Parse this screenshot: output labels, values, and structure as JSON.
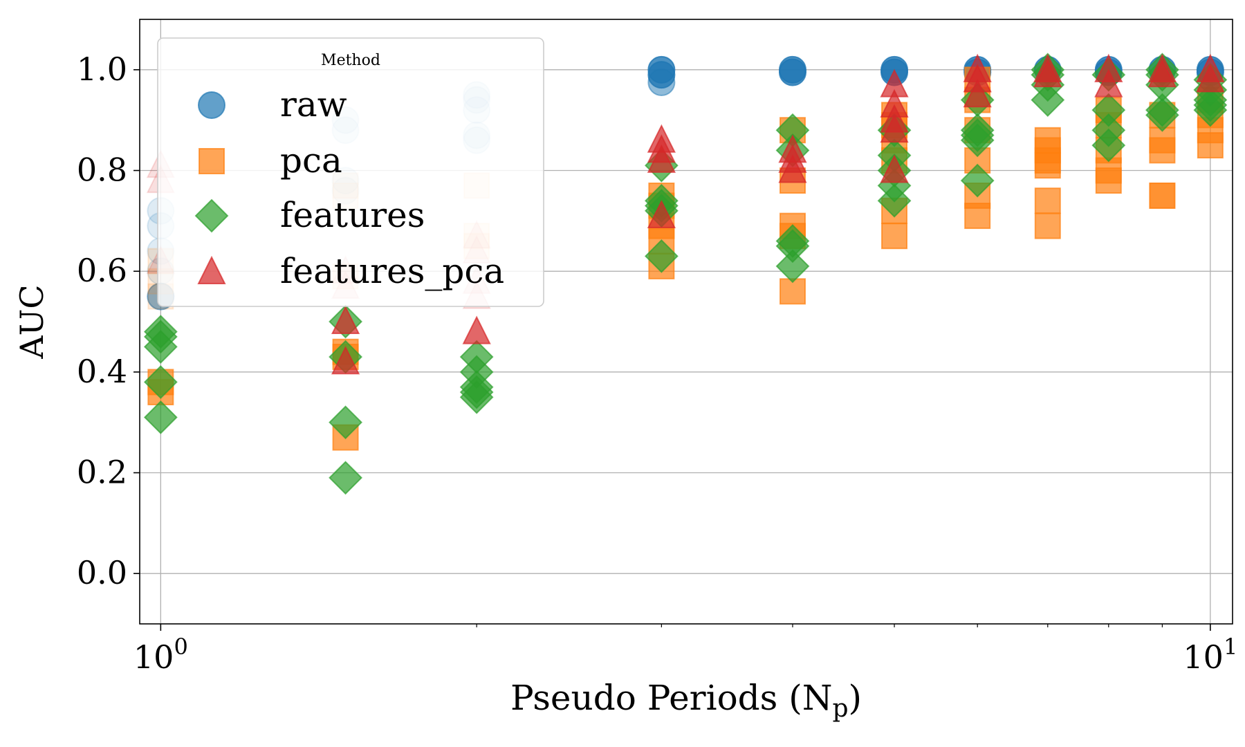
{
  "chart_data": {
    "type": "scatter",
    "title": "",
    "xlabel": "Pseudo Periods (N",
    "xlabel_sub": "p",
    "xlabel_close": ")",
    "ylabel": "AUC",
    "xscale": "log",
    "xlim": [
      0.955,
      10.5
    ],
    "ylim": [
      -0.1,
      1.1
    ],
    "x_ticks": [
      {
        "x": 1,
        "base": "10",
        "exp": "0"
      },
      {
        "x": 10,
        "base": "10",
        "exp": "1"
      }
    ],
    "y_ticks": [
      {
        "y": 0.0,
        "label": "0.0"
      },
      {
        "y": 0.2,
        "label": "0.2"
      },
      {
        "y": 0.4,
        "label": "0.4"
      },
      {
        "y": 0.6,
        "label": "0.6"
      },
      {
        "y": 0.8,
        "label": "0.8"
      },
      {
        "y": 1.0,
        "label": "1.0"
      }
    ],
    "grid": true,
    "legend": {
      "title": "Method",
      "placement": "upper-left"
    },
    "series": [
      {
        "name": "raw",
        "marker": "circle",
        "color": "#1f77b4",
        "points": [
          {
            "x": 1.0,
            "y": 0.72,
            "alpha": 0.15
          },
          {
            "x": 1.0,
            "y": 0.69,
            "alpha": 0.15
          },
          {
            "x": 1.0,
            "y": 0.64,
            "alpha": 0.15
          },
          {
            "x": 1.0,
            "y": 0.6,
            "alpha": 0.15
          },
          {
            "x": 1.0,
            "y": 0.55,
            "alpha": 0.6
          },
          {
            "x": 1.5,
            "y": 0.9,
            "alpha": 0.15
          },
          {
            "x": 1.5,
            "y": 0.88,
            "alpha": 0.15
          },
          {
            "x": 1.5,
            "y": 0.78,
            "alpha": 0.15
          },
          {
            "x": 1.5,
            "y": 0.76,
            "alpha": 0.15
          },
          {
            "x": 2.0,
            "y": 0.95,
            "alpha": 0.15
          },
          {
            "x": 2.0,
            "y": 0.94,
            "alpha": 0.15
          },
          {
            "x": 2.0,
            "y": 0.92,
            "alpha": 0.15
          },
          {
            "x": 2.0,
            "y": 0.87,
            "alpha": 0.15
          },
          {
            "x": 2.0,
            "y": 0.86,
            "alpha": 0.15
          },
          {
            "x": 3.0,
            "y": 1.0,
            "alpha": 0.8
          },
          {
            "x": 3.0,
            "y": 0.99,
            "alpha": 0.8
          },
          {
            "x": 3.0,
            "y": 0.975,
            "alpha": 0.5
          },
          {
            "x": 4.0,
            "y": 1.0,
            "alpha": 0.8
          },
          {
            "x": 4.0,
            "y": 0.995,
            "alpha": 0.8
          },
          {
            "x": 5.0,
            "y": 1.0,
            "alpha": 0.8
          },
          {
            "x": 5.0,
            "y": 0.995,
            "alpha": 0.8
          },
          {
            "x": 6.0,
            "y": 1.0,
            "alpha": 0.8
          },
          {
            "x": 6.0,
            "y": 0.995,
            "alpha": 0.8
          },
          {
            "x": 7.0,
            "y": 1.0,
            "alpha": 0.8
          },
          {
            "x": 8.0,
            "y": 1.0,
            "alpha": 0.8
          },
          {
            "x": 8.0,
            "y": 0.995,
            "alpha": 0.8
          },
          {
            "x": 9.0,
            "y": 1.0,
            "alpha": 0.8
          },
          {
            "x": 10.0,
            "y": 1.0,
            "alpha": 0.8
          },
          {
            "x": 10.0,
            "y": 0.995,
            "alpha": 0.8
          }
        ]
      },
      {
        "name": "pca",
        "marker": "square",
        "color": "#ff7f0e",
        "points": [
          {
            "x": 1.0,
            "y": 0.62,
            "alpha": 0.15
          },
          {
            "x": 1.0,
            "y": 0.58,
            "alpha": 0.15
          },
          {
            "x": 1.0,
            "y": 0.55,
            "alpha": 0.15
          },
          {
            "x": 1.0,
            "y": 0.38,
            "alpha": 0.7
          },
          {
            "x": 1.0,
            "y": 0.36,
            "alpha": 0.7
          },
          {
            "x": 1.5,
            "y": 0.77,
            "alpha": 0.15
          },
          {
            "x": 1.5,
            "y": 0.75,
            "alpha": 0.15
          },
          {
            "x": 1.5,
            "y": 0.59,
            "alpha": 0.15
          },
          {
            "x": 1.5,
            "y": 0.44,
            "alpha": 0.7
          },
          {
            "x": 1.5,
            "y": 0.43,
            "alpha": 0.7
          },
          {
            "x": 1.5,
            "y": 0.27,
            "alpha": 0.7
          },
          {
            "x": 2.0,
            "y": 0.77,
            "alpha": 0.15
          },
          {
            "x": 2.0,
            "y": 0.67,
            "alpha": 0.15
          },
          {
            "x": 2.0,
            "y": 0.65,
            "alpha": 0.15
          },
          {
            "x": 3.0,
            "y": 0.75,
            "alpha": 0.7
          },
          {
            "x": 3.0,
            "y": 0.73,
            "alpha": 0.7
          },
          {
            "x": 3.0,
            "y": 0.69,
            "alpha": 0.7
          },
          {
            "x": 3.0,
            "y": 0.66,
            "alpha": 0.7
          },
          {
            "x": 3.0,
            "y": 0.61,
            "alpha": 0.7
          },
          {
            "x": 4.0,
            "y": 0.88,
            "alpha": 0.7
          },
          {
            "x": 4.0,
            "y": 0.78,
            "alpha": 0.7
          },
          {
            "x": 4.0,
            "y": 0.69,
            "alpha": 0.7
          },
          {
            "x": 4.0,
            "y": 0.67,
            "alpha": 0.7
          },
          {
            "x": 4.0,
            "y": 0.56,
            "alpha": 0.7
          },
          {
            "x": 5.0,
            "y": 0.91,
            "alpha": 0.7
          },
          {
            "x": 5.0,
            "y": 0.89,
            "alpha": 0.7
          },
          {
            "x": 5.0,
            "y": 0.86,
            "alpha": 0.7
          },
          {
            "x": 5.0,
            "y": 0.82,
            "alpha": 0.7
          },
          {
            "x": 5.0,
            "y": 0.72,
            "alpha": 0.7
          },
          {
            "x": 5.0,
            "y": 0.67,
            "alpha": 0.7
          },
          {
            "x": 6.0,
            "y": 0.98,
            "alpha": 0.7
          },
          {
            "x": 6.0,
            "y": 0.94,
            "alpha": 0.7
          },
          {
            "x": 6.0,
            "y": 0.88,
            "alpha": 0.7
          },
          {
            "x": 6.0,
            "y": 0.82,
            "alpha": 0.7
          },
          {
            "x": 6.0,
            "y": 0.75,
            "alpha": 0.7
          },
          {
            "x": 6.0,
            "y": 0.71,
            "alpha": 0.7
          },
          {
            "x": 7.0,
            "y": 0.86,
            "alpha": 0.7
          },
          {
            "x": 7.0,
            "y": 0.84,
            "alpha": 0.7
          },
          {
            "x": 7.0,
            "y": 0.82,
            "alpha": 0.7
          },
          {
            "x": 7.0,
            "y": 0.81,
            "alpha": 0.7
          },
          {
            "x": 7.0,
            "y": 0.74,
            "alpha": 0.7
          },
          {
            "x": 7.0,
            "y": 0.69,
            "alpha": 0.7
          },
          {
            "x": 8.0,
            "y": 0.92,
            "alpha": 0.7
          },
          {
            "x": 8.0,
            "y": 0.89,
            "alpha": 0.7
          },
          {
            "x": 8.0,
            "y": 0.84,
            "alpha": 0.7
          },
          {
            "x": 8.0,
            "y": 0.8,
            "alpha": 0.7
          },
          {
            "x": 8.0,
            "y": 0.78,
            "alpha": 0.7
          },
          {
            "x": 9.0,
            "y": 0.91,
            "alpha": 0.7
          },
          {
            "x": 9.0,
            "y": 0.86,
            "alpha": 0.7
          },
          {
            "x": 9.0,
            "y": 0.84,
            "alpha": 0.7
          },
          {
            "x": 9.0,
            "y": 0.75,
            "alpha": 0.85
          },
          {
            "x": 10.0,
            "y": 0.94,
            "alpha": 0.7
          },
          {
            "x": 10.0,
            "y": 0.91,
            "alpha": 0.7
          },
          {
            "x": 10.0,
            "y": 0.88,
            "alpha": 0.7
          },
          {
            "x": 10.0,
            "y": 0.85,
            "alpha": 0.7
          }
        ]
      },
      {
        "name": "features",
        "marker": "diamond",
        "color": "#2ca02c",
        "points": [
          {
            "x": 1.0,
            "y": 0.48,
            "alpha": 0.7
          },
          {
            "x": 1.0,
            "y": 0.47,
            "alpha": 0.7
          },
          {
            "x": 1.0,
            "y": 0.45,
            "alpha": 0.7
          },
          {
            "x": 1.0,
            "y": 0.38,
            "alpha": 0.7
          },
          {
            "x": 1.0,
            "y": 0.31,
            "alpha": 0.7
          },
          {
            "x": 1.5,
            "y": 0.5,
            "alpha": 0.7
          },
          {
            "x": 1.5,
            "y": 0.43,
            "alpha": 0.7
          },
          {
            "x": 1.5,
            "y": 0.3,
            "alpha": 0.7
          },
          {
            "x": 1.5,
            "y": 0.19,
            "alpha": 0.7
          },
          {
            "x": 2.0,
            "y": 0.43,
            "alpha": 0.7
          },
          {
            "x": 2.0,
            "y": 0.4,
            "alpha": 0.7
          },
          {
            "x": 2.0,
            "y": 0.37,
            "alpha": 0.7
          },
          {
            "x": 2.0,
            "y": 0.36,
            "alpha": 0.7
          },
          {
            "x": 2.0,
            "y": 0.35,
            "alpha": 0.7
          },
          {
            "x": 3.0,
            "y": 0.81,
            "alpha": 0.7
          },
          {
            "x": 3.0,
            "y": 0.74,
            "alpha": 0.7
          },
          {
            "x": 3.0,
            "y": 0.73,
            "alpha": 0.7
          },
          {
            "x": 3.0,
            "y": 0.72,
            "alpha": 0.7
          },
          {
            "x": 3.0,
            "y": 0.63,
            "alpha": 0.7
          },
          {
            "x": 4.0,
            "y": 0.88,
            "alpha": 0.7
          },
          {
            "x": 4.0,
            "y": 0.84,
            "alpha": 0.7
          },
          {
            "x": 4.0,
            "y": 0.66,
            "alpha": 0.7
          },
          {
            "x": 4.0,
            "y": 0.65,
            "alpha": 0.7
          },
          {
            "x": 4.0,
            "y": 0.61,
            "alpha": 0.7
          },
          {
            "x": 5.0,
            "y": 0.88,
            "alpha": 0.7
          },
          {
            "x": 5.0,
            "y": 0.83,
            "alpha": 0.7
          },
          {
            "x": 5.0,
            "y": 0.8,
            "alpha": 0.7
          },
          {
            "x": 5.0,
            "y": 0.77,
            "alpha": 0.7
          },
          {
            "x": 5.0,
            "y": 0.74,
            "alpha": 0.7
          },
          {
            "x": 6.0,
            "y": 0.94,
            "alpha": 0.7
          },
          {
            "x": 6.0,
            "y": 0.88,
            "alpha": 0.7
          },
          {
            "x": 6.0,
            "y": 0.87,
            "alpha": 0.7
          },
          {
            "x": 6.0,
            "y": 0.86,
            "alpha": 0.7
          },
          {
            "x": 6.0,
            "y": 0.78,
            "alpha": 0.7
          },
          {
            "x": 7.0,
            "y": 1.0,
            "alpha": 0.7
          },
          {
            "x": 7.0,
            "y": 0.99,
            "alpha": 0.7
          },
          {
            "x": 7.0,
            "y": 0.97,
            "alpha": 0.7
          },
          {
            "x": 7.0,
            "y": 0.94,
            "alpha": 0.7
          },
          {
            "x": 8.0,
            "y": 0.99,
            "alpha": 0.7
          },
          {
            "x": 8.0,
            "y": 0.92,
            "alpha": 0.7
          },
          {
            "x": 8.0,
            "y": 0.88,
            "alpha": 0.7
          },
          {
            "x": 8.0,
            "y": 0.85,
            "alpha": 0.7
          },
          {
            "x": 9.0,
            "y": 1.0,
            "alpha": 0.7
          },
          {
            "x": 9.0,
            "y": 0.99,
            "alpha": 0.7
          },
          {
            "x": 9.0,
            "y": 0.97,
            "alpha": 0.7
          },
          {
            "x": 9.0,
            "y": 0.92,
            "alpha": 0.7
          },
          {
            "x": 9.0,
            "y": 0.91,
            "alpha": 0.7
          },
          {
            "x": 10.0,
            "y": 0.98,
            "alpha": 0.7
          },
          {
            "x": 10.0,
            "y": 0.96,
            "alpha": 0.7
          },
          {
            "x": 10.0,
            "y": 0.94,
            "alpha": 0.7
          },
          {
            "x": 10.0,
            "y": 0.93,
            "alpha": 0.7
          },
          {
            "x": 10.0,
            "y": 0.92,
            "alpha": 0.7
          }
        ]
      },
      {
        "name": "features_pca",
        "marker": "triangle",
        "color": "#d62728",
        "points": [
          {
            "x": 1.0,
            "y": 0.81,
            "alpha": 0.15
          },
          {
            "x": 1.0,
            "y": 0.78,
            "alpha": 0.15
          },
          {
            "x": 1.0,
            "y": 0.62,
            "alpha": 0.15
          },
          {
            "x": 1.5,
            "y": 0.6,
            "alpha": 0.15
          },
          {
            "x": 1.5,
            "y": 0.57,
            "alpha": 0.15
          },
          {
            "x": 1.5,
            "y": 0.5,
            "alpha": 0.7
          },
          {
            "x": 1.5,
            "y": 0.42,
            "alpha": 0.7
          },
          {
            "x": 2.0,
            "y": 0.67,
            "alpha": 0.15
          },
          {
            "x": 2.0,
            "y": 0.64,
            "alpha": 0.15
          },
          {
            "x": 2.0,
            "y": 0.58,
            "alpha": 0.15
          },
          {
            "x": 2.0,
            "y": 0.55,
            "alpha": 0.15
          },
          {
            "x": 2.0,
            "y": 0.48,
            "alpha": 0.7
          },
          {
            "x": 3.0,
            "y": 0.86,
            "alpha": 0.7
          },
          {
            "x": 3.0,
            "y": 0.84,
            "alpha": 0.7
          },
          {
            "x": 3.0,
            "y": 0.82,
            "alpha": 0.7
          },
          {
            "x": 3.0,
            "y": 0.71,
            "alpha": 0.7
          },
          {
            "x": 4.0,
            "y": 0.84,
            "alpha": 0.7
          },
          {
            "x": 4.0,
            "y": 0.82,
            "alpha": 0.7
          },
          {
            "x": 4.0,
            "y": 0.8,
            "alpha": 0.7
          },
          {
            "x": 5.0,
            "y": 0.97,
            "alpha": 0.7
          },
          {
            "x": 5.0,
            "y": 0.93,
            "alpha": 0.7
          },
          {
            "x": 5.0,
            "y": 0.9,
            "alpha": 0.7
          },
          {
            "x": 5.0,
            "y": 0.88,
            "alpha": 0.7
          },
          {
            "x": 5.0,
            "y": 0.8,
            "alpha": 0.7
          },
          {
            "x": 6.0,
            "y": 1.0,
            "alpha": 0.7
          },
          {
            "x": 6.0,
            "y": 0.98,
            "alpha": 0.7
          },
          {
            "x": 6.0,
            "y": 0.95,
            "alpha": 0.7
          },
          {
            "x": 7.0,
            "y": 1.0,
            "alpha": 0.7
          },
          {
            "x": 7.0,
            "y": 0.99,
            "alpha": 0.7
          },
          {
            "x": 8.0,
            "y": 1.0,
            "alpha": 0.7
          },
          {
            "x": 8.0,
            "y": 0.97,
            "alpha": 0.7
          },
          {
            "x": 9.0,
            "y": 1.0,
            "alpha": 0.7
          },
          {
            "x": 9.0,
            "y": 0.99,
            "alpha": 0.7
          },
          {
            "x": 10.0,
            "y": 1.0,
            "alpha": 0.7
          },
          {
            "x": 10.0,
            "y": 0.98,
            "alpha": 0.7
          }
        ]
      }
    ]
  }
}
